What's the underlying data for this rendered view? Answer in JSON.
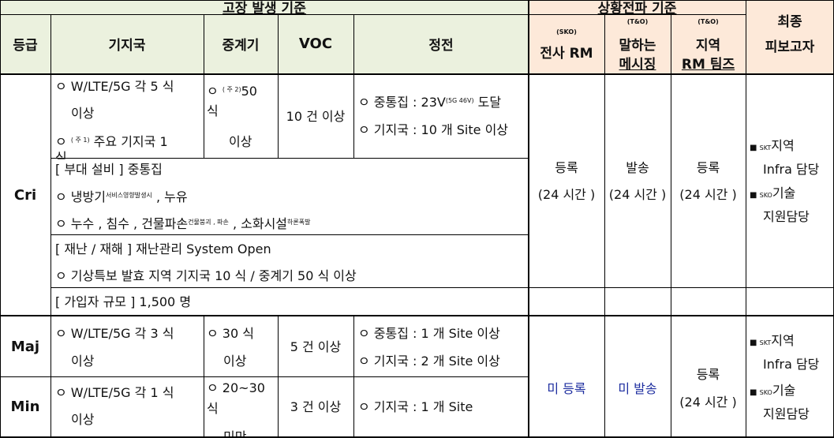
{
  "header": {
    "group_fault": "고장 발생 기준",
    "group_propagation": "상황전파 기준",
    "grade": "등급",
    "base_station": "기지국",
    "repeater": "중계기",
    "voc": "VOC",
    "power_outage": "정전",
    "sko_note": "(SKO)",
    "sko_label": "전사  RM",
    "tno_note_1": "(T&O)",
    "tno_1_line1": "말하는",
    "tno_1_line2": "메시징",
    "tno_note_2": "(T&O)",
    "tno_2_line1": "지역",
    "tno_2_line2": "RM 팀즈",
    "final_line1": "최종",
    "final_line2": "피보고자"
  },
  "cri": {
    "grade": "Cri",
    "bs_line1": "ㅇ  W/LTE/5G  각  5 식",
    "bs_line2": "이상",
    "bs_line3_prefix": "ㅇ ",
    "bs_line3_sup": "( 주 1)",
    "bs_line3_text": " 주요 기지국    1",
    "bs_line4": "식",
    "rep_line1_prefix": "ㅇ  ",
    "rep_line1_sup": "( 주 2)",
    "rep_line1_text": "50",
    "rep_line2": "식",
    "rep_line3": "이상",
    "voc": "10 건 이상",
    "power_line1_text": "ㅇ 중통집 : 23V",
    "power_line1_sup": "(5G 46V)",
    "power_line1_tail": " 도달",
    "power_line2": "ㅇ 기지국 : 10 개  Site  이상",
    "facility_title": "[ 부대 설비 ]  중통집",
    "facility_line2_a": "ㅇ 냉방기",
    "facility_line2_small": "서비스영향발생시",
    "facility_line2_b": " , 누유",
    "facility_line3_a": "ㅇ 누수 ,  침수 ,  건물파손",
    "facility_line3_small1": "건물붕괴 , 파손",
    "facility_line3_b": " ,  소화시설",
    "facility_line3_small2": "하론폭발",
    "disaster_title": "[ 재난 / 재해 ]  재난관리  System Open",
    "disaster_line2": "ㅇ 기상특보 발효 지역 기지국  10 식 / 중계기  50 식 이상",
    "subscriber": "[ 가입자 규모 ] 1,500 명",
    "prop_sko_line1": "등록",
    "prop_sko_line2": "(24 시간 )",
    "prop_msg_line1": "발송",
    "prop_msg_line2": "(24 시간 )",
    "prop_teams_line1": "등록",
    "prop_teams_line2": "(24 시간 )",
    "final_1_small": "SKT",
    "final_1_text": "지역",
    "final_1_line2": "Infra 담당",
    "final_2_small": "SKO",
    "final_2_text": "기술",
    "final_2_line2": "지원담당"
  },
  "maj": {
    "grade": "Maj",
    "bs_line1": "ㅇ  W/LTE/5G  각  3 식",
    "bs_line2": "이상",
    "rep_line1": "ㅇ   30 식",
    "rep_line2": "이상",
    "voc": "5 건 이상",
    "power_line1": "ㅇ 중통집 : 1 개  Site  이상",
    "power_line2": "ㅇ 기지국 : 2 개  Site  이상"
  },
  "min": {
    "grade": "Min",
    "bs_line1": "ㅇ  W/LTE/5G  각  1 식",
    "bs_line2": "이상",
    "rep_line1": "ㅇ   20~30",
    "rep_line2": "식",
    "rep_line3": "미만",
    "voc": "3 건 이상",
    "power_line1": "ㅇ 기지국 : 1 개  Site"
  },
  "lower_prop": {
    "sko": "미 등록",
    "msg": "미 발송",
    "teams_line1": "등록",
    "teams_line2": "(24 시간 )",
    "final_1_small": "SKT",
    "final_1_text": "지역",
    "final_1_line2": "Infra 담당",
    "final_2_small": "SKO",
    "final_2_text": "기술",
    "final_2_line2": "지원담당"
  },
  "colors": {
    "header_green": "#ebf1de",
    "header_peach": "#fde9d9",
    "text_blue": "#1f2fa0"
  }
}
